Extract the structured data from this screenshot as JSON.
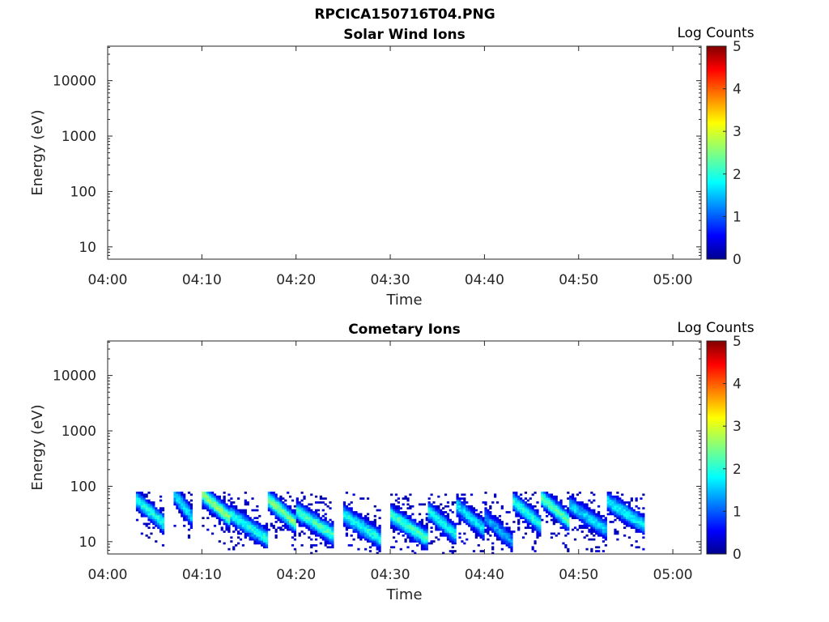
{
  "figure": {
    "title": "RPCICA150716T04.PNG"
  },
  "chart_data": [
    {
      "type": "heatmap",
      "title": "Solar Wind Ions",
      "xlabel": "Time",
      "ylabel": "Energy (eV)",
      "y_scale": "log",
      "ylim": [
        6,
        42000
      ],
      "xlim": [
        "04:00",
        "05:03"
      ],
      "x_ticks": [
        "04:00",
        "04:10",
        "04:20",
        "04:30",
        "04:40",
        "04:50",
        "05:00"
      ],
      "y_ticks": [
        "10",
        "100",
        "1000",
        "10000"
      ],
      "colorbar": {
        "label": "Log Counts",
        "min": 0,
        "max": 5,
        "ticks": [
          "0",
          "1",
          "2",
          "3",
          "4",
          "5"
        ],
        "colormap": "jet"
      },
      "data_start": "",
      "data_end": "",
      "peaks": []
    },
    {
      "type": "heatmap",
      "title": "Cometary Ions",
      "xlabel": "Time",
      "ylabel": "Energy (eV)",
      "y_scale": "log",
      "ylim": [
        6,
        42000
      ],
      "xlim": [
        "04:00",
        "05:03"
      ],
      "x_ticks": [
        "04:00",
        "04:10",
        "04:20",
        "04:30",
        "04:40",
        "04:50",
        "05:00"
      ],
      "y_ticks": [
        "10",
        "100",
        "1000",
        "10000"
      ],
      "colorbar": {
        "label": "Log Counts",
        "min": 0,
        "max": 5,
        "ticks": [
          "0",
          "1",
          "2",
          "3",
          "4",
          "5"
        ],
        "colormap": "jet"
      },
      "data_start": "04:03",
      "data_end": "04:57",
      "energy_range": [
        6,
        80
      ],
      "peaks": [
        {
          "start": "04:03",
          "end": "04:06",
          "energy": 32,
          "log_counts": 2.0
        },
        {
          "start": "04:07",
          "end": "04:09",
          "energy": 40,
          "log_counts": 1.8
        },
        {
          "start": "04:10",
          "end": "04:13",
          "energy": 40,
          "log_counts": 2.6
        },
        {
          "start": "04:13",
          "end": "04:17",
          "energy": 17,
          "log_counts": 2.0
        },
        {
          "start": "04:17",
          "end": "04:20",
          "energy": 32,
          "log_counts": 2.5
        },
        {
          "start": "04:20",
          "end": "04:24",
          "energy": 20,
          "log_counts": 2.2
        },
        {
          "start": "04:25",
          "end": "04:29",
          "energy": 17,
          "log_counts": 2.0
        },
        {
          "start": "04:30",
          "end": "04:34",
          "energy": 17,
          "log_counts": 2.2
        },
        {
          "start": "04:34",
          "end": "04:37",
          "energy": 20,
          "log_counts": 1.9
        },
        {
          "start": "04:37",
          "end": "04:40",
          "energy": 25,
          "log_counts": 1.8
        },
        {
          "start": "04:40",
          "end": "04:43",
          "energy": 15,
          "log_counts": 1.4
        },
        {
          "start": "04:43",
          "end": "04:46",
          "energy": 30,
          "log_counts": 2.0
        },
        {
          "start": "04:46",
          "end": "04:49",
          "energy": 35,
          "log_counts": 2.3
        },
        {
          "start": "04:49",
          "end": "04:53",
          "energy": 25,
          "log_counts": 1.7
        },
        {
          "start": "04:53",
          "end": "04:57",
          "energy": 30,
          "log_counts": 1.9
        }
      ]
    }
  ]
}
